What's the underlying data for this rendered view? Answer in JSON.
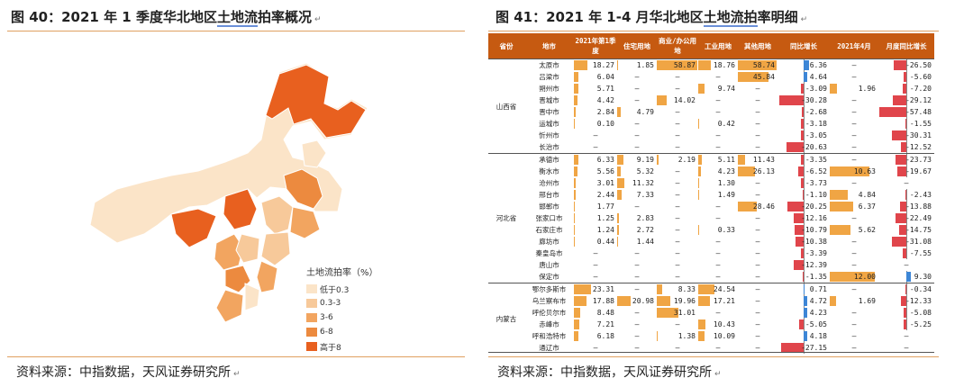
{
  "left": {
    "title_prefix": "图 40：2021 年 1 季度华北地区",
    "title_underlined": "土地流",
    "title_suffix": "拍率概况",
    "source": "资料来源：中指数据，天风证券研究所",
    "legend": {
      "title": "土地流拍率（%）",
      "items": [
        {
          "label": "低于0.3",
          "color": "#fbe4c8"
        },
        {
          "label": "0.3-3",
          "color": "#f7c99a"
        },
        {
          "label": "3-6",
          "color": "#f2a560"
        },
        {
          "label": "6-8",
          "color": "#ec8a3f"
        },
        {
          "label": "高于8",
          "color": "#e8601f"
        }
      ]
    }
  },
  "right": {
    "title_prefix": "图 41：2021 年 1-4 月华北地区",
    "title_underlined": "土地流拍",
    "title_suffix": "率明细",
    "source": "资料来源：中指数据，天风证券研究所",
    "headers": [
      "省份",
      "地市",
      "2021年第1季度",
      "住宅用地",
      "商业/办公用地",
      "工业用地",
      "其他用地",
      "同比增长",
      "2021年4月",
      "月度同比增长"
    ],
    "colors": {
      "header_bg": "#c65a11",
      "bar": "#f0a544",
      "pos_bar": "#3d86d6",
      "neg_bar": "#e0454b"
    },
    "groups": [
      {
        "province": "山西省",
        "rows": [
          {
            "city": "太原市",
            "v": [
              18.27,
              1.85,
              58.87,
              18.76,
              58.74
            ],
            "yoy": 6.36,
            "apr": null,
            "myoy": -26.5
          },
          {
            "city": "吕梁市",
            "v": [
              6.04,
              null,
              null,
              null,
              45.84
            ],
            "yoy": 4.64,
            "apr": null,
            "myoy": -5.6
          },
          {
            "city": "朔州市",
            "v": [
              5.71,
              null,
              null,
              9.74,
              null
            ],
            "yoy": -3.09,
            "apr": 1.96,
            "myoy": -7.2
          },
          {
            "city": "晋城市",
            "v": [
              4.42,
              null,
              14.02,
              null,
              null
            ],
            "yoy": -30.28,
            "apr": null,
            "myoy": -29.12
          },
          {
            "city": "晋中市",
            "v": [
              2.84,
              4.79,
              null,
              null,
              null
            ],
            "yoy": -2.68,
            "apr": null,
            "myoy": -57.48
          },
          {
            "city": "运城市",
            "v": [
              0.1,
              null,
              null,
              0.42,
              null
            ],
            "yoy": -3.18,
            "apr": null,
            "myoy": -1.55
          },
          {
            "city": "忻州市",
            "v": [
              null,
              null,
              null,
              null,
              null
            ],
            "yoy": -3.05,
            "apr": null,
            "myoy": -30.31
          },
          {
            "city": "长治市",
            "v": [
              null,
              null,
              null,
              null,
              null
            ],
            "yoy": -20.63,
            "apr": null,
            "myoy": -12.52
          }
        ]
      },
      {
        "province": "河北省",
        "rows": [
          {
            "city": "承德市",
            "v": [
              6.33,
              9.19,
              2.19,
              5.11,
              11.43
            ],
            "yoy": -3.35,
            "apr": null,
            "myoy": -23.73
          },
          {
            "city": "衡水市",
            "v": [
              5.56,
              5.32,
              null,
              4.23,
              26.13
            ],
            "yoy": -6.52,
            "apr": 10.63,
            "myoy": -19.67
          },
          {
            "city": "沧州市",
            "v": [
              3.01,
              11.32,
              null,
              1.3,
              null
            ],
            "yoy": -3.73,
            "apr": null,
            "myoy": null
          },
          {
            "city": "邢台市",
            "v": [
              2.44,
              7.33,
              null,
              1.49,
              null
            ],
            "yoy": -1.1,
            "apr": 4.84,
            "myoy": -2.43
          },
          {
            "city": "邯郸市",
            "v": [
              1.77,
              null,
              null,
              null,
              28.46
            ],
            "yoy": -20.25,
            "apr": 6.37,
            "myoy": -13.88
          },
          {
            "city": "张家口市",
            "v": [
              1.25,
              2.83,
              null,
              null,
              null
            ],
            "yoy": -12.16,
            "apr": null,
            "myoy": -22.49
          },
          {
            "city": "石家庄市",
            "v": [
              1.24,
              2.72,
              null,
              0.33,
              null
            ],
            "yoy": -10.79,
            "apr": 5.62,
            "myoy": -14.75
          },
          {
            "city": "廊坊市",
            "v": [
              0.44,
              1.44,
              null,
              null,
              null
            ],
            "yoy": -10.38,
            "apr": null,
            "myoy": -31.08
          },
          {
            "city": "秦皇岛市",
            "v": [
              null,
              null,
              null,
              null,
              null
            ],
            "yoy": -3.39,
            "apr": null,
            "myoy": -7.55
          },
          {
            "city": "唐山市",
            "v": [
              null,
              null,
              null,
              null,
              null
            ],
            "yoy": -12.39,
            "apr": null,
            "myoy": null
          },
          {
            "city": "保定市",
            "v": [
              null,
              null,
              null,
              null,
              null
            ],
            "yoy": -1.35,
            "apr": 12.0,
            "myoy": 9.3
          }
        ]
      },
      {
        "province": "内蒙古",
        "rows": [
          {
            "city": "鄂尔多斯市",
            "v": [
              23.31,
              null,
              8.33,
              24.54,
              null
            ],
            "yoy": 0.71,
            "apr": null,
            "myoy": -0.34
          },
          {
            "city": "乌兰察布市",
            "v": [
              17.88,
              20.98,
              19.96,
              17.21,
              null
            ],
            "yoy": 4.72,
            "apr": 1.69,
            "myoy": -12.33
          },
          {
            "city": "呼伦贝尔市",
            "v": [
              8.48,
              null,
              31.01,
              null,
              null
            ],
            "yoy": 4.23,
            "apr": null,
            "myoy": -5.08
          },
          {
            "city": "赤峰市",
            "v": [
              7.21,
              null,
              null,
              10.43,
              null
            ],
            "yoy": -5.05,
            "apr": null,
            "myoy": -5.25
          },
          {
            "city": "呼和浩特市",
            "v": [
              6.18,
              null,
              1.38,
              10.09,
              null
            ],
            "yoy": 4.18,
            "apr": null,
            "myoy": null
          },
          {
            "city": "通辽市",
            "v": [
              null,
              null,
              null,
              null,
              null
            ],
            "yoy": -27.15,
            "apr": null,
            "myoy": null
          }
        ]
      }
    ]
  }
}
